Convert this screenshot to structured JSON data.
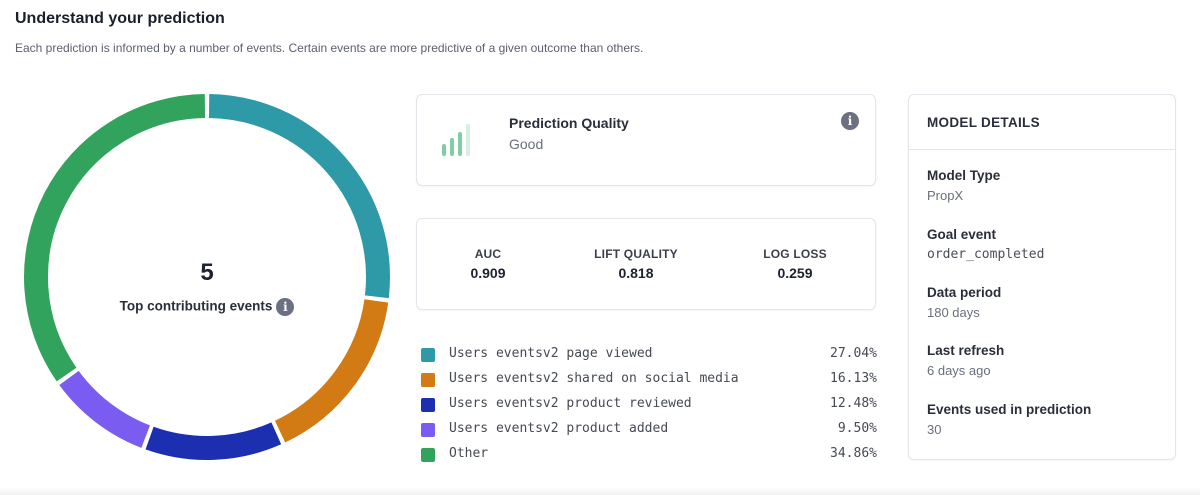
{
  "header": {
    "title": "Understand your prediction",
    "subtitle": "Each prediction is informed by a number of events. Certain events are more predictive of a given outcome than others."
  },
  "donut": {
    "count": "5",
    "label": "Top contributing events",
    "info_icon": "info-icon"
  },
  "quality": {
    "title": "Prediction Quality",
    "value": "Good",
    "icon": "signal-bars-icon",
    "info_icon": "info-icon"
  },
  "metrics": {
    "auc": {
      "label": "AUC",
      "value": "0.909"
    },
    "lift": {
      "label": "LIFT QUALITY",
      "value": "0.818"
    },
    "logloss": {
      "label": "LOG LOSS",
      "value": "0.259"
    }
  },
  "legend": [
    {
      "label": "Users eventsv2 page viewed",
      "value": "27.04%",
      "color": "#2f9aa7"
    },
    {
      "label": "Users eventsv2 shared on social media",
      "value": "16.13%",
      "color": "#d27a13"
    },
    {
      "label": "Users eventsv2 product reviewed",
      "value": "12.48%",
      "color": "#1b2fb0"
    },
    {
      "label": "Users eventsv2 product added",
      "value": "9.50%",
      "color": "#7b5cf0"
    },
    {
      "label": "Other",
      "value": "34.86%",
      "color": "#32a35d"
    }
  ],
  "details": {
    "header": "MODEL DETAILS",
    "model_type": {
      "label": "Model Type",
      "value": "PropX"
    },
    "goal_event": {
      "label": "Goal event",
      "value": "order_completed"
    },
    "data_period": {
      "label": "Data period",
      "value": "180 days"
    },
    "last_refresh": {
      "label": "Last refresh",
      "value": "6 days ago"
    },
    "events_used": {
      "label": "Events used in prediction",
      "value": "30"
    }
  },
  "chart_data": {
    "type": "pie",
    "categories": [
      "Users eventsv2 page viewed",
      "Users eventsv2 shared on social media",
      "Users eventsv2 product reviewed",
      "Users eventsv2 product added",
      "Other"
    ],
    "values": [
      27.04,
      16.13,
      12.48,
      9.5,
      34.86
    ],
    "colors": [
      "#2f9aa7",
      "#d27a13",
      "#1b2fb0",
      "#7b5cf0",
      "#32a35d"
    ],
    "donut": true
  }
}
